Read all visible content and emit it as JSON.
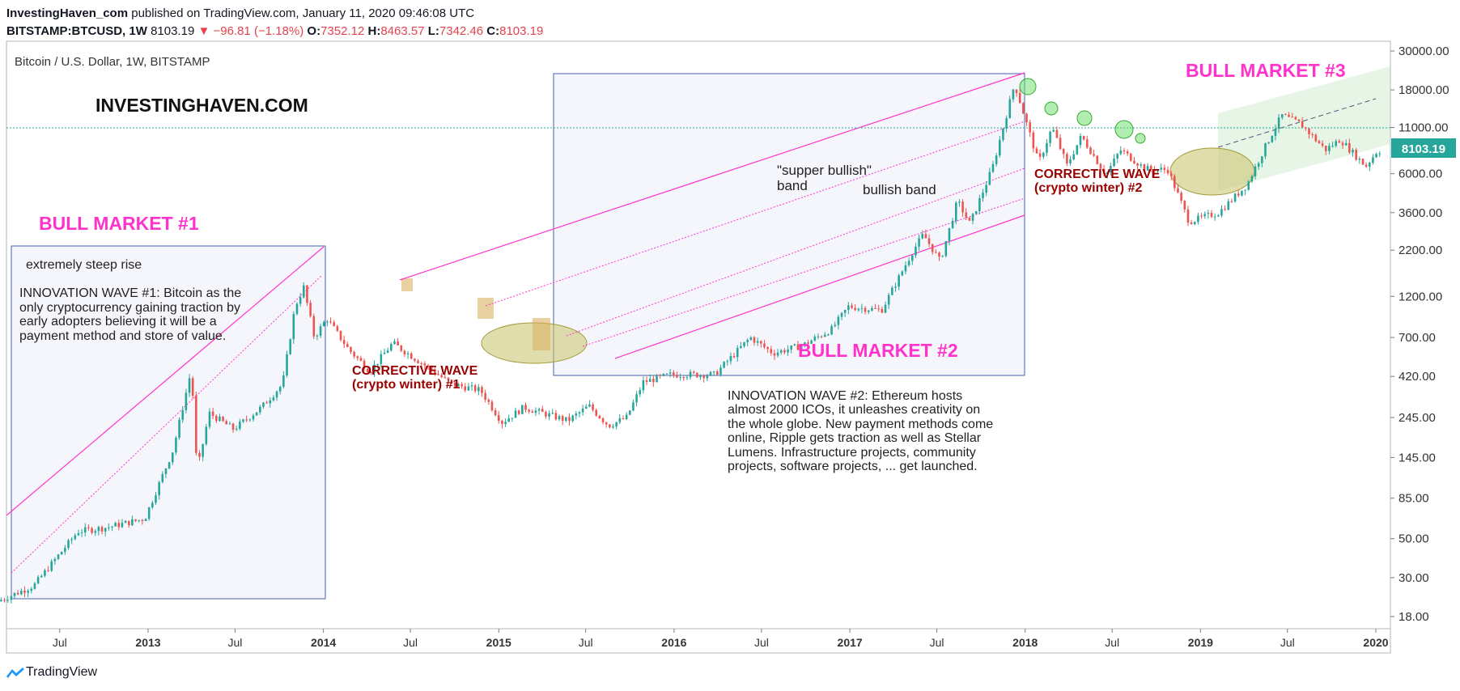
{
  "header": {
    "publisher": "InvestingHaven_com",
    "published_text": "published on TradingView.com, January 11, 2020 09:46:08 UTC",
    "symbol": "BITSTAMP:BTCUSD, 1W",
    "last": "8103.19",
    "change": "▼ −96.81 (−1.18%)",
    "o_label": "O:",
    "o_value": "7352.12",
    "h_label": "H:",
    "h_value": "8463.57",
    "l_label": "L:",
    "l_value": "7342.46",
    "c_label": "C:",
    "c_value": "8103.19"
  },
  "footer": {
    "brand": "TradingView"
  },
  "colors": {
    "up": "#26a69a",
    "down": "#ef5350",
    "magenta": "#ff33cc",
    "dark_red": "#990000",
    "box_border": "#4a5fb0",
    "box_fill": "#e8ecf8",
    "price_line": "#26a69a",
    "ellipse": "#b5b040",
    "accent_green": "#66dd66"
  },
  "chart_data": {
    "type": "candlestick",
    "title": "Bitcoin / U.S. Dollar, 1W, BITSTAMP",
    "watermark": "INVESTINGHAVEN.COM",
    "y_scale": "log",
    "y_ticks": [
      "30000.00",
      "18000.00",
      "11000.00",
      "6000.00",
      "3600.00",
      "2200.00",
      "1200.00",
      "700.00",
      "420.00",
      "245.00",
      "145.00",
      "85.00",
      "50.00",
      "30.00",
      "18.00"
    ],
    "x_ticks": [
      "Jul",
      "2013",
      "Jul",
      "2014",
      "Jul",
      "2015",
      "Jul",
      "2016",
      "Jul",
      "2017",
      "Jul",
      "2018",
      "Jul",
      "2019",
      "Jul",
      "2020"
    ],
    "last_price_label": "8103.19",
    "price_path": [
      [
        "2012-03-01",
        22
      ],
      [
        "2012-05-15",
        27
      ],
      [
        "2012-08-15",
        55
      ],
      [
        "2012-10-15",
        58
      ],
      [
        "2013-01-01",
        65
      ],
      [
        "2013-03-01",
        160
      ],
      [
        "2013-04-08",
        460
      ],
      [
        "2013-04-20",
        120
      ],
      [
        "2013-05-15",
        260
      ],
      [
        "2013-07-05",
        210
      ],
      [
        "2013-09-01",
        280
      ],
      [
        "2013-10-15",
        380
      ],
      [
        "2013-11-10",
        1050
      ],
      [
        "2013-11-28",
        1350
      ],
      [
        "2013-12-20",
        700
      ],
      [
        "2014-01-15",
        900
      ],
      [
        "2014-03-01",
        600
      ],
      [
        "2014-04-15",
        450
      ],
      [
        "2014-06-01",
        650
      ],
      [
        "2014-08-01",
        500
      ],
      [
        "2014-10-01",
        380
      ],
      [
        "2014-12-01",
        350
      ],
      [
        "2015-01-15",
        230
      ],
      [
        "2015-03-01",
        280
      ],
      [
        "2015-06-01",
        235
      ],
      [
        "2015-07-15",
        285
      ],
      [
        "2015-08-25",
        220
      ],
      [
        "2015-10-01",
        245
      ],
      [
        "2015-11-05",
        390
      ],
      [
        "2016-01-01",
        430
      ],
      [
        "2016-04-01",
        430
      ],
      [
        "2016-06-15",
        700
      ],
      [
        "2016-08-01",
        570
      ],
      [
        "2016-10-01",
        630
      ],
      [
        "2016-12-01",
        780
      ],
      [
        "2017-01-05",
        1050
      ],
      [
        "2017-03-15",
        1000
      ],
      [
        "2017-05-20",
        2200
      ],
      [
        "2017-06-10",
        2700
      ],
      [
        "2017-07-15",
        1900
      ],
      [
        "2017-08-20",
        4200
      ],
      [
        "2017-09-15",
        3100
      ],
      [
        "2017-11-01",
        6500
      ],
      [
        "2017-12-17",
        19500
      ],
      [
        "2018-02-05",
        6900
      ],
      [
        "2018-03-05",
        11000
      ],
      [
        "2018-04-05",
        6700
      ],
      [
        "2018-05-05",
        9800
      ],
      [
        "2018-06-25",
        5900
      ],
      [
        "2018-07-25",
        8200
      ],
      [
        "2018-09-15",
        6400
      ],
      [
        "2018-11-01",
        6300
      ],
      [
        "2018-12-15",
        3200
      ],
      [
        "2019-02-15",
        3600
      ],
      [
        "2019-04-15",
        5200
      ],
      [
        "2019-05-25",
        8800
      ],
      [
        "2019-06-26",
        12900
      ],
      [
        "2019-08-05",
        11500
      ],
      [
        "2019-09-25",
        8200
      ],
      [
        "2019-10-26",
        9400
      ],
      [
        "2019-12-18",
        6600
      ],
      [
        "2020-01-11",
        8103
      ]
    ]
  },
  "annotations": {
    "bull1": "BULL MARKET #1",
    "bull2": "BULL MARKET #2",
    "bull3": "BULL MARKET #3",
    "steep": "extremely steep rise",
    "innov1": [
      "INNOVATION WAVE #1: Bitcoin as the",
      "only cryptocurrency gaining traction by",
      "early adopters believing it will be a",
      "payment method and store of value."
    ],
    "corr1": [
      "CORRECTIVE WAVE",
      "(crypto winter) #1"
    ],
    "corr2": [
      "CORRECTIVE WAVE",
      "(crypto winter) #2"
    ],
    "super_band": [
      "\"supper bullish\"",
      "band"
    ],
    "bullish_band": "bullish band",
    "innov2": [
      "INNOVATION WAVE #2: Ethereum hosts",
      "almost 2000 ICOs, it unleashes creativity on",
      "the whole globe. New payment methods come",
      "online, Ripple gets traction as well as Stellar",
      "Lumens. Infrastructure projects, community",
      "projects, software projects, ... get launched."
    ]
  }
}
